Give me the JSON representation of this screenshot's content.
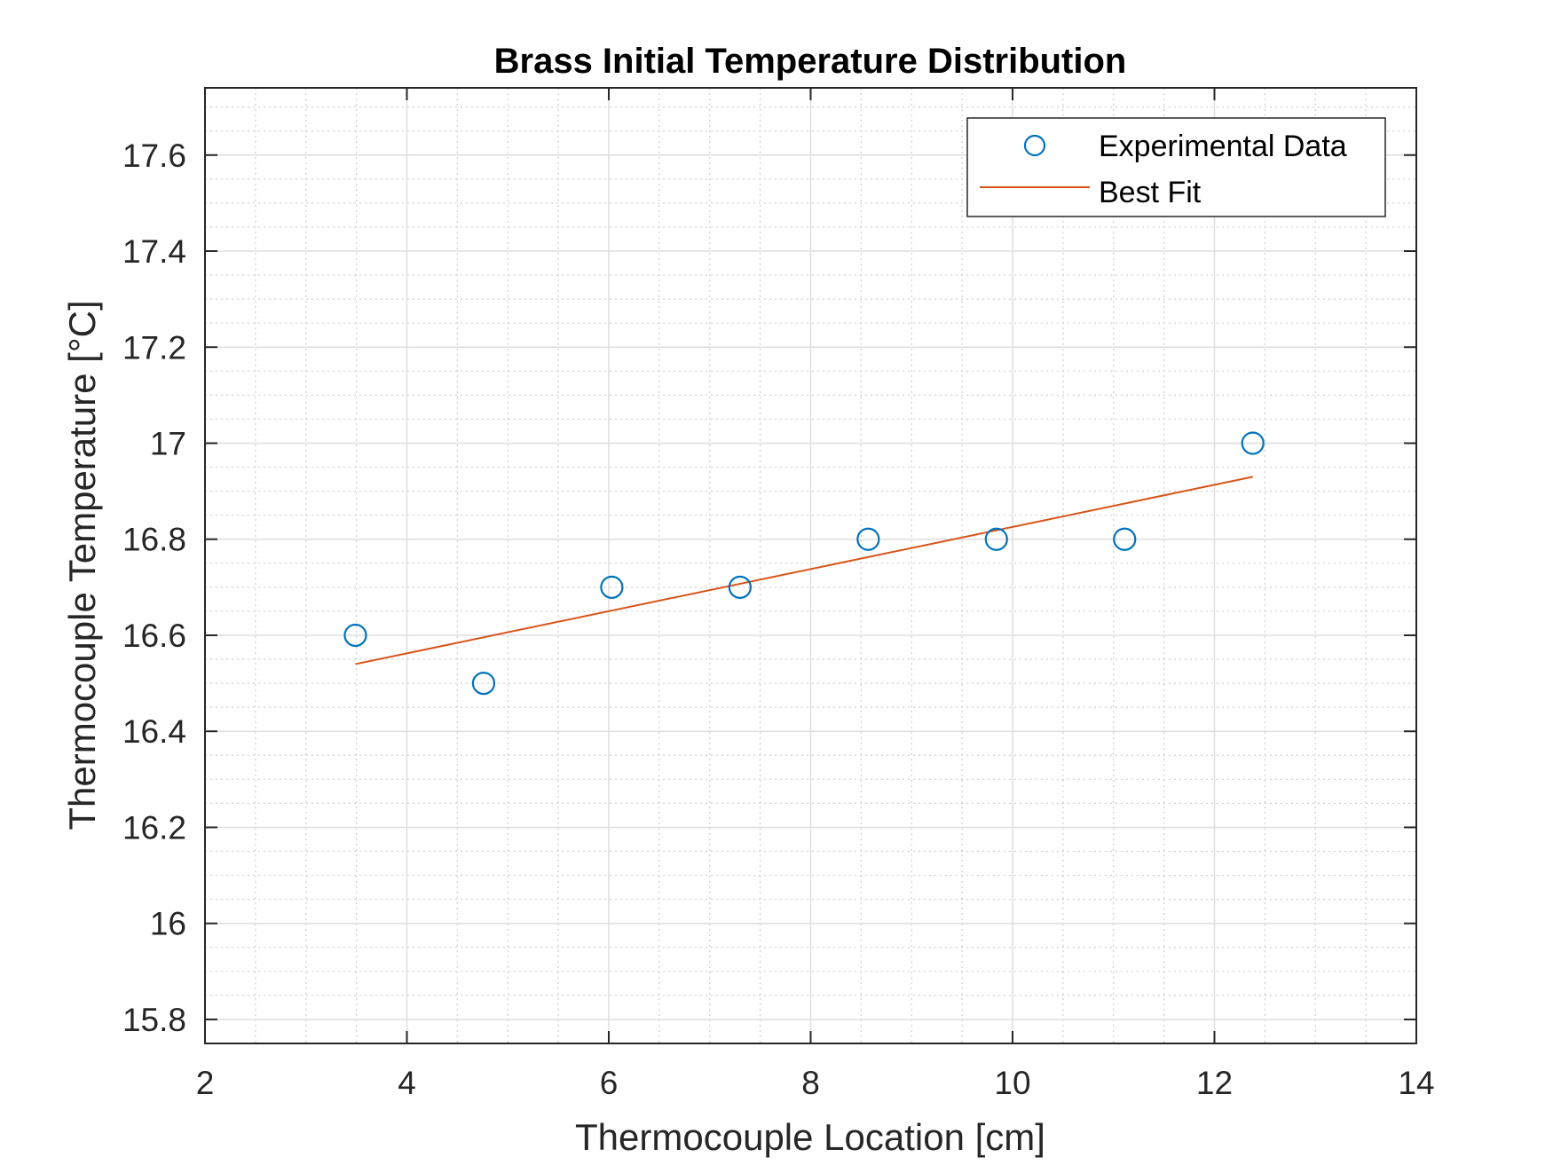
{
  "chart_data": {
    "type": "scatter",
    "title": "Brass Initial Temperature Distribution",
    "xlabel": "Thermocouple Location [cm]",
    "ylabel": "Thermocouple Temperature [°C]",
    "xlim": [
      2,
      14
    ],
    "ylim": [
      15.75,
      17.74
    ],
    "xticks": [
      2,
      4,
      6,
      8,
      10,
      12,
      14
    ],
    "yticks": [
      15.8,
      16,
      16.2,
      16.4,
      16.6,
      16.8,
      17,
      17.2,
      17.4,
      17.6
    ],
    "grid": true,
    "minor_grid": true,
    "legend_position": "top-right",
    "series": [
      {
        "name": "Experimental Data",
        "kind": "scatter",
        "marker": "circle",
        "color": "#0072BD",
        "x": [
          3.49,
          4.76,
          6.03,
          7.3,
          8.57,
          9.84,
          11.11,
          12.38
        ],
        "y": [
          16.6,
          16.5,
          16.7,
          16.7,
          16.8,
          16.8,
          16.8,
          17.0
        ]
      },
      {
        "name": "Best Fit",
        "kind": "line",
        "color": "#D95319",
        "x": [
          3.49,
          12.38
        ],
        "y": [
          16.54,
          16.93
        ]
      }
    ]
  }
}
